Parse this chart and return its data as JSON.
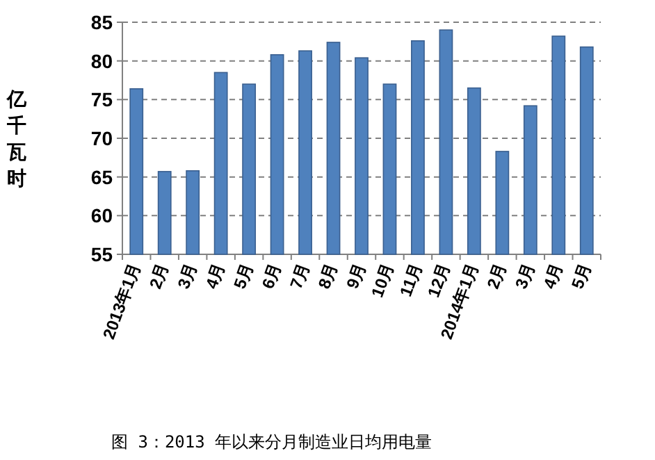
{
  "chart_data": {
    "type": "bar",
    "ylabel": "亿千瓦时",
    "categories": [
      "2013年1月",
      "2月",
      "3月",
      "4月",
      "5月",
      "6月",
      "7月",
      "8月",
      "9月",
      "10月",
      "11月",
      "12月",
      "2014年1月",
      "2月",
      "3月",
      "4月",
      "5月"
    ],
    "values": [
      76.4,
      65.7,
      65.8,
      78.5,
      77.0,
      80.8,
      81.3,
      82.4,
      80.4,
      77.0,
      82.6,
      84.0,
      76.5,
      68.3,
      74.2,
      83.2,
      81.8
    ],
    "color": "#4f81bd",
    "ylim": [
      55,
      85
    ],
    "yticks": [
      55,
      60,
      65,
      70,
      75,
      80,
      85
    ],
    "grid": "y",
    "annotations": [
      "图 3：2013 年以来分月制造业日均用电量"
    ]
  }
}
